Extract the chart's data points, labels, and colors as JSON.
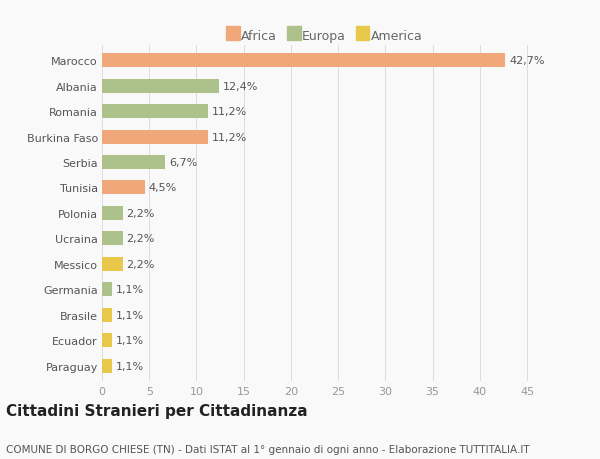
{
  "categories": [
    "Marocco",
    "Albania",
    "Romania",
    "Burkina Faso",
    "Serbia",
    "Tunisia",
    "Polonia",
    "Ucraina",
    "Messico",
    "Germania",
    "Brasile",
    "Ecuador",
    "Paraguay"
  ],
  "values": [
    42.7,
    12.4,
    11.2,
    11.2,
    6.7,
    4.5,
    2.2,
    2.2,
    2.2,
    1.1,
    1.1,
    1.1,
    1.1
  ],
  "labels": [
    "42,7%",
    "12,4%",
    "11,2%",
    "11,2%",
    "6,7%",
    "4,5%",
    "2,2%",
    "2,2%",
    "2,2%",
    "1,1%",
    "1,1%",
    "1,1%",
    "1,1%"
  ],
  "colors": [
    "#f0a87a",
    "#adc18a",
    "#adc18a",
    "#f0a87a",
    "#adc18a",
    "#f0a87a",
    "#adc18a",
    "#adc18a",
    "#e8c84a",
    "#adc18a",
    "#e8c84a",
    "#e8c84a",
    "#e8c84a"
  ],
  "legend": {
    "Africa": "#f0a87a",
    "Europa": "#adc18a",
    "America": "#e8c84a"
  },
  "title": "Cittadini Stranieri per Cittadinanza",
  "subtitle": "COMUNE DI BORGO CHIESE (TN) - Dati ISTAT al 1° gennaio di ogni anno - Elaborazione TUTTITALIA.IT",
  "xlim": [
    0,
    47
  ],
  "xticks": [
    0,
    5,
    10,
    15,
    20,
    25,
    30,
    35,
    40,
    45
  ],
  "background_color": "#f9f9f9",
  "bar_height": 0.55,
  "label_fontsize": 8,
  "tick_fontsize": 8,
  "title_fontsize": 11,
  "subtitle_fontsize": 7.5
}
